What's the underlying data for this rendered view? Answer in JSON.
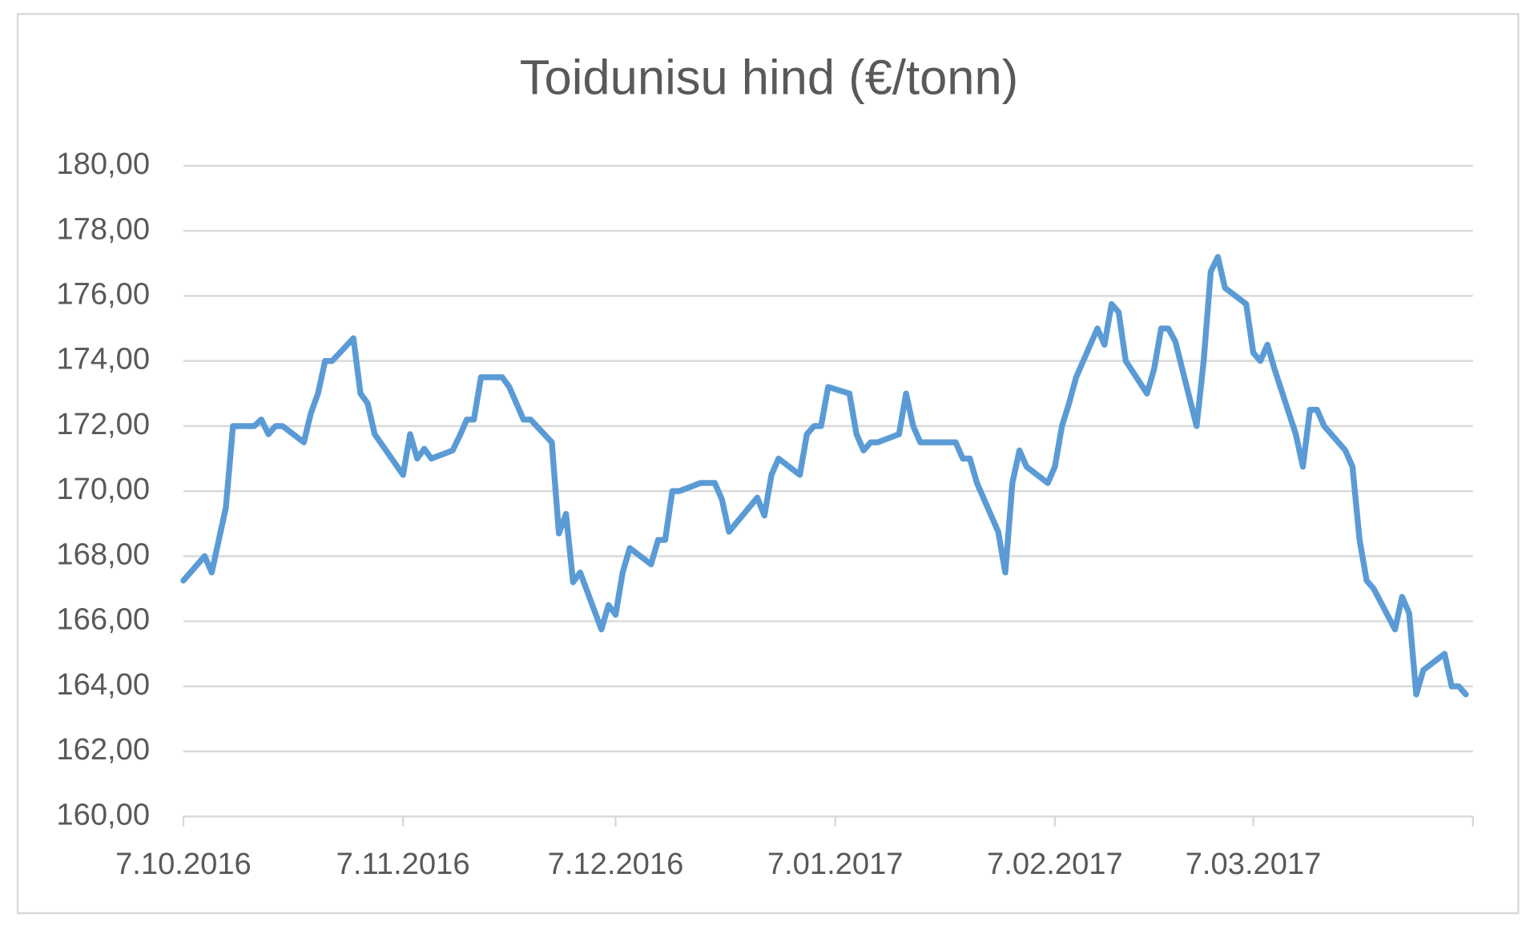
{
  "chart_data": {
    "type": "line",
    "title": "Toidunisu hind (€/tonn)",
    "x": [
      "2016-10-07",
      "2016-10-10",
      "2016-10-11",
      "2016-10-13",
      "2016-10-14",
      "2016-10-17",
      "2016-10-18",
      "2016-10-19",
      "2016-10-20",
      "2016-10-21",
      "2016-10-24",
      "2016-10-25",
      "2016-10-26",
      "2016-10-27",
      "2016-10-28",
      "2016-10-31",
      "2016-11-01",
      "2016-11-02",
      "2016-11-03",
      "2016-11-07",
      "2016-11-08",
      "2016-11-09",
      "2016-11-10",
      "2016-11-11",
      "2016-11-14",
      "2016-11-15",
      "2016-11-16",
      "2016-11-17",
      "2016-11-18",
      "2016-11-21",
      "2016-11-22",
      "2016-11-23",
      "2016-11-24",
      "2016-11-25",
      "2016-11-28",
      "2016-11-29",
      "2016-11-30",
      "2016-12-01",
      "2016-12-02",
      "2016-12-05",
      "2016-12-06",
      "2016-12-07",
      "2016-12-08",
      "2016-12-09",
      "2016-12-12",
      "2016-12-13",
      "2016-12-14",
      "2016-12-15",
      "2016-12-16",
      "2016-12-19",
      "2016-12-20",
      "2016-12-21",
      "2016-12-22",
      "2016-12-23",
      "2016-12-27",
      "2016-12-28",
      "2016-12-29",
      "2016-12-30",
      "2017-01-02",
      "2017-01-03",
      "2017-01-04",
      "2017-01-05",
      "2017-01-06",
      "2017-01-09",
      "2017-01-10",
      "2017-01-11",
      "2017-01-12",
      "2017-01-13",
      "2017-01-16",
      "2017-01-17",
      "2017-01-18",
      "2017-01-19",
      "2017-01-20",
      "2017-01-23",
      "2017-01-24",
      "2017-01-25",
      "2017-01-26",
      "2017-01-27",
      "2017-01-30",
      "2017-01-31",
      "2017-02-01",
      "2017-02-02",
      "2017-02-03",
      "2017-02-06",
      "2017-02-07",
      "2017-02-08",
      "2017-02-09",
      "2017-02-10",
      "2017-02-13",
      "2017-02-14",
      "2017-02-15",
      "2017-02-16",
      "2017-02-17",
      "2017-02-20",
      "2017-02-21",
      "2017-02-22",
      "2017-02-23",
      "2017-02-24",
      "2017-02-27",
      "2017-02-28",
      "2017-03-01",
      "2017-03-02",
      "2017-03-03",
      "2017-03-06",
      "2017-03-07",
      "2017-03-08",
      "2017-03-09",
      "2017-03-10",
      "2017-03-13",
      "2017-03-14",
      "2017-03-15",
      "2017-03-16",
      "2017-03-17",
      "2017-03-20",
      "2017-03-21",
      "2017-03-22",
      "2017-03-23",
      "2017-03-24",
      "2017-03-27",
      "2017-03-28",
      "2017-03-29",
      "2017-03-30",
      "2017-03-31",
      "2017-04-03",
      "2017-04-04",
      "2017-04-05",
      "2017-04-06"
    ],
    "values": [
      167.25,
      168.0,
      167.5,
      169.5,
      172.0,
      172.0,
      172.2,
      171.75,
      172.0,
      172.0,
      171.5,
      172.4,
      173.0,
      174.0,
      174.0,
      174.7,
      173.0,
      172.7,
      171.75,
      170.5,
      171.75,
      171.0,
      171.3,
      171.0,
      171.25,
      171.7,
      172.2,
      172.2,
      173.5,
      173.5,
      173.2,
      172.7,
      172.2,
      172.2,
      171.5,
      168.7,
      169.3,
      167.2,
      167.5,
      165.75,
      166.5,
      166.2,
      167.5,
      168.25,
      167.75,
      168.5,
      168.5,
      170.0,
      170.0,
      170.25,
      170.25,
      170.25,
      169.75,
      168.75,
      169.8,
      169.25,
      170.5,
      171.0,
      170.5,
      171.75,
      172.0,
      172.0,
      173.2,
      173.0,
      171.75,
      171.25,
      171.5,
      171.5,
      171.75,
      173.0,
      172.0,
      171.5,
      171.5,
      171.5,
      171.5,
      171.0,
      171.0,
      170.25,
      168.75,
      167.5,
      170.25,
      171.25,
      170.75,
      170.25,
      170.75,
      172.0,
      172.7,
      173.5,
      175.0,
      174.5,
      175.75,
      175.5,
      174.0,
      173.0,
      173.75,
      175.0,
      175.0,
      174.6,
      172.0,
      174.0,
      176.75,
      177.2,
      176.25,
      175.75,
      174.25,
      174.0,
      174.5,
      173.75,
      171.75,
      170.75,
      172.5,
      172.5,
      172.0,
      171.25,
      170.75,
      168.5,
      167.25,
      167.0,
      165.75,
      166.75,
      166.25,
      163.75,
      164.5,
      165.0,
      164.0,
      164.0,
      163.75
    ],
    "color": "#5b9bd5",
    "xlim": [
      "2016-10-07",
      "2017-04-07"
    ],
    "xticks": [
      {
        "value": "2016-10-07",
        "label": "7.10.2016"
      },
      {
        "value": "2016-11-07",
        "label": "7.11.2016"
      },
      {
        "value": "2016-12-07",
        "label": "7.12.2016"
      },
      {
        "value": "2017-01-07",
        "label": "7.01.2017"
      },
      {
        "value": "2017-02-07",
        "label": "7.02.2017"
      },
      {
        "value": "2017-03-07",
        "label": "7.03.2017"
      }
    ],
    "ylim": [
      160,
      180
    ],
    "yticks": [
      {
        "value": 160,
        "label": "160,00"
      },
      {
        "value": 162,
        "label": "162,00"
      },
      {
        "value": 164,
        "label": "164,00"
      },
      {
        "value": 166,
        "label": "166,00"
      },
      {
        "value": 168,
        "label": "168,00"
      },
      {
        "value": 170,
        "label": "170,00"
      },
      {
        "value": 172,
        "label": "172,00"
      },
      {
        "value": 174,
        "label": "174,00"
      },
      {
        "value": 176,
        "label": "176,00"
      },
      {
        "value": 178,
        "label": "178,00"
      },
      {
        "value": 180,
        "label": "180,00"
      }
    ],
    "grid": true
  }
}
